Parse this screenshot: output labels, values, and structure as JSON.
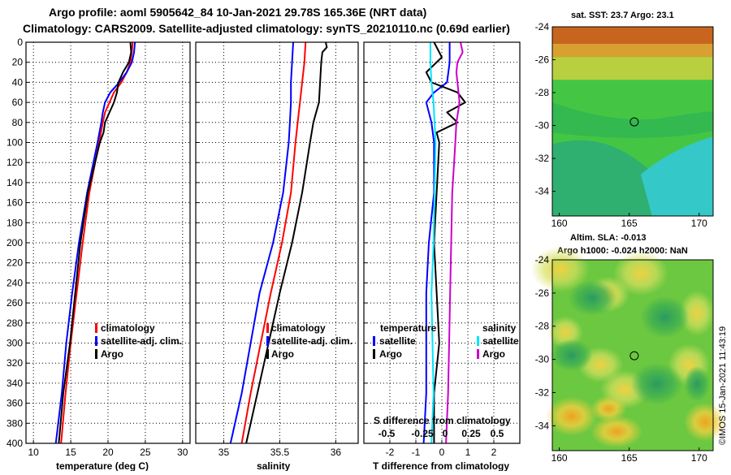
{
  "title_line1": "Argo profile: aoml 5905642_84 10-Jan-2021 29.78S 165.36E (NRT data)",
  "title_line2": "Climatology: CARS2009. Satellite-adjusted climatology: synTS_20210110.nc (0.69d earlier)",
  "credit": "©IMOS 15-Jan-2021 11:43:19",
  "colors": {
    "climatology": "#ff0000",
    "satellite": "#0000ff",
    "argo": "#000000",
    "s_satellite": "#00e5ff",
    "s_diff": "#cc00cc"
  },
  "depth_ticks": [
    "0",
    "20",
    "40",
    "60",
    "80",
    "100",
    "120",
    "140",
    "160",
    "180",
    "200",
    "220",
    "240",
    "260",
    "280",
    "300",
    "320",
    "340",
    "360",
    "380",
    "400"
  ],
  "chart_data": [
    {
      "type": "line",
      "name": "temperature",
      "xlabel": "temperature (deg C)",
      "ylabel": "depth",
      "xlim": [
        9,
        31
      ],
      "ylim": [
        400,
        0
      ],
      "xticks": [
        "10",
        "15",
        "20",
        "25",
        "30"
      ],
      "xtick_values": [
        10,
        15,
        20,
        25,
        30
      ],
      "legend": [
        "climatology",
        "satellite-adj. clim.",
        "Argo"
      ],
      "series": [
        {
          "name": "climatology",
          "color": "#ff0000",
          "depth": [
            0,
            10,
            20,
            30,
            40,
            50,
            60,
            70,
            80,
            100,
            150,
            200,
            250,
            300,
            350,
            400
          ],
          "values": [
            23.3,
            23.2,
            23.0,
            22.5,
            21.8,
            20.8,
            20.2,
            19.6,
            19.3,
            18.8,
            17.5,
            16.6,
            15.8,
            15.0,
            14.3,
            13.7
          ]
        },
        {
          "name": "satellite-adj. clim.",
          "color": "#0000ff",
          "depth": [
            0,
            10,
            20,
            30,
            40,
            50,
            60,
            70,
            80,
            100,
            150,
            200,
            250,
            300,
            350,
            400
          ],
          "values": [
            23.6,
            23.5,
            23.2,
            22.5,
            21.5,
            20.3,
            19.6,
            19.3,
            19.1,
            18.6,
            17.2,
            16.1,
            15.2,
            14.4,
            13.8,
            13.0
          ]
        },
        {
          "name": "Argo",
          "color": "#000000",
          "depth": [
            0,
            10,
            20,
            30,
            40,
            45,
            50,
            60,
            70,
            80,
            90,
            100,
            150,
            200,
            250,
            300,
            350,
            400
          ],
          "values": [
            23.0,
            23.1,
            22.8,
            22.0,
            21.4,
            21.3,
            21.2,
            20.8,
            20.2,
            19.6,
            19.4,
            18.9,
            17.3,
            16.3,
            15.6,
            14.9,
            14.0,
            13.4
          ]
        }
      ]
    },
    {
      "type": "line",
      "name": "salinity",
      "xlabel": "salinity",
      "ylabel": "depth",
      "xlim": [
        34.75,
        36.2
      ],
      "ylim": [
        400,
        0
      ],
      "xticks": [
        "35",
        "35.5",
        "36"
      ],
      "xtick_values": [
        35,
        35.5,
        36
      ],
      "legend": [
        "climatology",
        "satellite-adj. clim.",
        "Argo"
      ],
      "series": [
        {
          "name": "climatology",
          "color": "#ff0000",
          "depth": [
            0,
            20,
            40,
            60,
            80,
            100,
            150,
            200,
            250,
            300,
            350,
            400
          ],
          "values": [
            35.73,
            35.72,
            35.7,
            35.68,
            35.66,
            35.64,
            35.6,
            35.52,
            35.42,
            35.33,
            35.24,
            35.16
          ]
        },
        {
          "name": "satellite-adj. clim.",
          "color": "#0000ff",
          "depth": [
            0,
            20,
            40,
            60,
            80,
            100,
            150,
            200,
            250,
            300,
            350,
            400
          ],
          "values": [
            35.62,
            35.61,
            35.6,
            35.6,
            35.59,
            35.58,
            35.53,
            35.44,
            35.32,
            35.24,
            35.16,
            35.06
          ]
        },
        {
          "name": "Argo",
          "color": "#000000",
          "depth": [
            0,
            5,
            10,
            20,
            40,
            60,
            80,
            100,
            150,
            200,
            250,
            300,
            350,
            400
          ],
          "values": [
            35.91,
            35.92,
            35.88,
            35.87,
            35.86,
            35.85,
            35.8,
            35.77,
            35.7,
            35.61,
            35.5,
            35.4,
            35.3,
            35.2
          ]
        }
      ]
    },
    {
      "type": "line",
      "name": "difference",
      "xlabel": "T difference from climatology",
      "xlabel2": "S difference from climatology",
      "ylabel": "depth",
      "xlim": [
        -3,
        3
      ],
      "ylim": [
        400,
        0
      ],
      "xticks": [
        "-2",
        "-1",
        "0",
        "1",
        "2"
      ],
      "xtick_values": [
        -2,
        -1,
        0,
        1,
        2
      ],
      "xticks_top": [
        "-0.5",
        "-0.25",
        "0",
        "0.25",
        "0.5"
      ],
      "legend_left_title": "temperature",
      "legend_right_title": "salinity",
      "legend_left": [
        "satellite",
        "Argo"
      ],
      "legend_right": [
        "satellite",
        "Argo"
      ],
      "series": [
        {
          "name": "T satellite",
          "color": "#0000ff",
          "depth": [
            0,
            20,
            40,
            50,
            60,
            70,
            80,
            100,
            150,
            200,
            250,
            300,
            350,
            400
          ],
          "values": [
            0.3,
            0.3,
            0.2,
            -0.3,
            -0.6,
            -0.5,
            -0.4,
            -0.3,
            -0.3,
            -0.5,
            -0.6,
            -0.6,
            -0.6,
            -0.7
          ]
        },
        {
          "name": "T Argo",
          "color": "#000000",
          "depth": [
            0,
            15,
            30,
            40,
            50,
            60,
            70,
            80,
            90,
            100,
            150,
            200,
            250,
            300,
            350,
            400
          ],
          "values": [
            -0.3,
            0.0,
            -0.6,
            -0.4,
            0.6,
            0.9,
            0.2,
            0.6,
            -0.2,
            -0.1,
            -0.2,
            -0.3,
            -0.2,
            -0.1,
            -0.3,
            -0.3
          ]
        },
        {
          "name": "S satellite",
          "color": "#00e5ff",
          "depth": [
            0,
            20,
            40,
            60,
            80,
            100,
            150,
            200,
            250,
            300,
            350,
            400
          ],
          "values": [
            -0.11,
            -0.11,
            -0.1,
            -0.08,
            -0.07,
            -0.06,
            -0.07,
            -0.08,
            -0.1,
            -0.09,
            -0.08,
            -0.1
          ]
        },
        {
          "name": "S Argo",
          "color": "#cc00cc",
          "depth": [
            0,
            10,
            20,
            30,
            40,
            60,
            80,
            100,
            150,
            200,
            250,
            300,
            350,
            400
          ],
          "values": [
            0.18,
            0.2,
            0.15,
            0.14,
            0.15,
            0.17,
            0.14,
            0.13,
            0.1,
            0.09,
            0.08,
            0.07,
            0.06,
            0.04
          ]
        }
      ]
    },
    {
      "type": "heatmap",
      "name": "sst_map",
      "title": "sat. SST: 23.7 Argo: 23.1",
      "xlim": [
        159.5,
        171
      ],
      "ylim": [
        -35.5,
        -24
      ],
      "xticks": [
        "160",
        "165",
        "170"
      ],
      "xtick_values": [
        160,
        165,
        170
      ],
      "yticks": [
        "-24",
        "-26",
        "-28",
        "-30",
        "-32",
        "-34"
      ],
      "ytick_values": [
        -24,
        -26,
        -28,
        -30,
        -32,
        -34
      ],
      "marker": {
        "lon": 165.36,
        "lat": -29.78
      }
    },
    {
      "type": "heatmap",
      "name": "sla_map",
      "title": "Altim. SLA: -0.013",
      "subtitle": "Argo h1000: -0.024 h2000: NaN",
      "xlim": [
        159.5,
        171
      ],
      "ylim": [
        -35.5,
        -24
      ],
      "xticks": [
        "160",
        "165",
        "170"
      ],
      "xtick_values": [
        160,
        165,
        170
      ],
      "yticks": [
        "-24",
        "-26",
        "-28",
        "-30",
        "-32",
        "-34"
      ],
      "ytick_values": [
        -24,
        -26,
        -28,
        -30,
        -32,
        -34
      ],
      "marker": {
        "lon": 165.36,
        "lat": -29.78
      }
    }
  ]
}
